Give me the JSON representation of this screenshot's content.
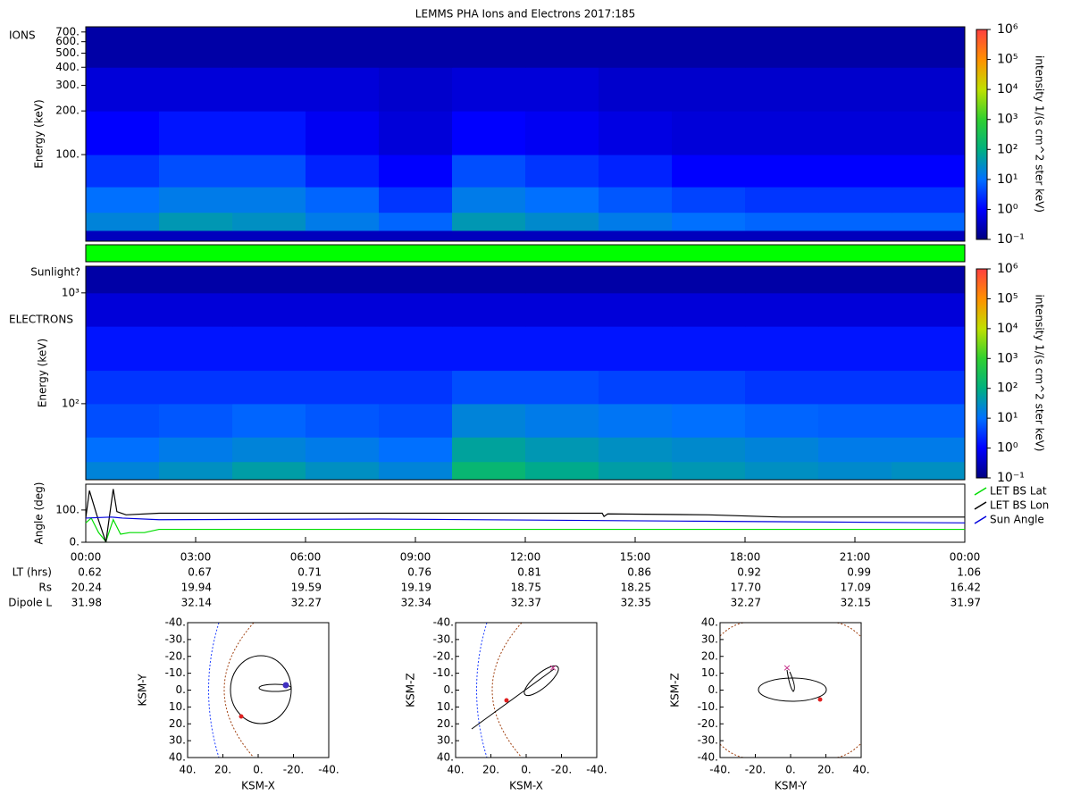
{
  "chart_data": [
    {
      "type": "heatmap",
      "title": "LEMMS PHA Ions and Electrons  2017:185",
      "annotation": "IONS",
      "ylabel": "Energy (keV)",
      "colorbar_label": "intensity 1/(s cm^2 ster keV)",
      "log_y": true,
      "xlim": [
        0,
        24
      ],
      "x_bins": [
        0,
        2,
        4,
        6,
        8,
        10,
        12,
        14,
        16,
        18,
        20,
        22,
        24
      ],
      "ylim": [
        25.3,
        760
      ],
      "y_bins": [
        25.3,
        30,
        40,
        60,
        100,
        200,
        400,
        760
      ],
      "yticks": [
        {
          "value": 100,
          "label": "100."
        },
        {
          "value": 200,
          "label": "200."
        },
        {
          "value": 300,
          "label": "300."
        },
        {
          "value": 400,
          "label": "400."
        },
        {
          "value": 500,
          "label": "500."
        },
        {
          "value": 600,
          "label": "600."
        },
        {
          "value": 700,
          "label": "700."
        }
      ],
      "values": [
        [
          0.3,
          0.3,
          0.3,
          0.3,
          0.3,
          0.3,
          0.3,
          0.3,
          0.3,
          0.3,
          0.3,
          0.3
        ],
        [
          20,
          40,
          30,
          15,
          8,
          40,
          25,
          15,
          10,
          8,
          8,
          8
        ],
        [
          10,
          15,
          15,
          8,
          3,
          15,
          10,
          6,
          4,
          3,
          3,
          3
        ],
        [
          3,
          5,
          5,
          2,
          1,
          5,
          3,
          2,
          1,
          1,
          1,
          1
        ],
        [
          1,
          1.5,
          1.5,
          0.8,
          0.5,
          1,
          0.8,
          0.6,
          0.5,
          0.5,
          0.5,
          0.5
        ],
        [
          0.5,
          0.5,
          0.5,
          0.5,
          0.4,
          0.5,
          0.5,
          0.4,
          0.4,
          0.4,
          0.4,
          0.4
        ],
        [
          0.2,
          0.2,
          0.2,
          0.2,
          0.2,
          0.2,
          0.2,
          0.2,
          0.2,
          0.2,
          0.2,
          0.2
        ]
      ],
      "zlim": [
        0.1,
        1000000
      ],
      "zticks": [
        {
          "value": 0.1,
          "label": "10⁻¹"
        },
        {
          "value": 1,
          "label": "10⁰"
        },
        {
          "value": 10,
          "label": "10¹"
        },
        {
          "value": 100,
          "label": "10²"
        },
        {
          "value": 1000,
          "label": "10³"
        },
        {
          "value": 10000,
          "label": "10⁴"
        },
        {
          "value": 100000,
          "label": "10⁵"
        },
        {
          "value": 1000000,
          "label": "10⁶"
        }
      ],
      "colormap": [
        "#000080",
        "#0000ff",
        "#0070ff",
        "#00b080",
        "#30d030",
        "#c0e000",
        "#ff9000",
        "#ff4040"
      ]
    },
    {
      "type": "status",
      "label": "Sunlight?",
      "color": "#00ff00"
    },
    {
      "type": "heatmap",
      "annotation": "ELECTRONS",
      "ylabel": "Energy (keV)",
      "colorbar_label": "intensity 1/(s cm^2 ster keV)",
      "log_y": true,
      "xlim": [
        0,
        24
      ],
      "x_bins": [
        0,
        2,
        4,
        6,
        8,
        10,
        12,
        14,
        16,
        18,
        20,
        22,
        24
      ],
      "ylim": [
        20.6,
        1740
      ],
      "y_bins": [
        20.6,
        30,
        50,
        100,
        200,
        500,
        1000,
        1740
      ],
      "yticks": [
        {
          "value": 100,
          "label": "10²"
        },
        {
          "value": 1000,
          "label": "10³"
        }
      ],
      "values": [
        [
          20,
          30,
          50,
          30,
          20,
          150,
          80,
          50,
          40,
          30,
          25,
          30
        ],
        [
          10,
          15,
          20,
          15,
          10,
          60,
          40,
          30,
          25,
          20,
          15,
          15
        ],
        [
          5,
          6,
          8,
          6,
          5,
          20,
          15,
          12,
          10,
          8,
          7,
          7
        ],
        [
          3,
          3,
          3,
          3,
          3,
          5,
          5,
          4,
          4,
          3,
          3,
          3
        ],
        [
          1.5,
          1.5,
          1.5,
          1.5,
          1.5,
          1.5,
          1.5,
          1.5,
          1.5,
          1.5,
          1.5,
          1.5
        ],
        [
          0.5,
          0.5,
          0.5,
          0.5,
          0.5,
          0.5,
          0.5,
          0.5,
          0.5,
          0.5,
          0.5,
          0.5
        ],
        [
          0.2,
          0.2,
          0.2,
          0.2,
          0.2,
          0.2,
          0.2,
          0.2,
          0.2,
          0.2,
          0.2,
          0.2
        ]
      ],
      "zlim": [
        0.1,
        1000000
      ],
      "zticks": [
        {
          "value": 0.1,
          "label": "10⁻¹"
        },
        {
          "value": 1,
          "label": "10⁰"
        },
        {
          "value": 10,
          "label": "10¹"
        },
        {
          "value": 100,
          "label": "10²"
        },
        {
          "value": 1000,
          "label": "10³"
        },
        {
          "value": 10000,
          "label": "10⁴"
        },
        {
          "value": 100000,
          "label": "10⁵"
        },
        {
          "value": 1000000,
          "label": "10⁶"
        }
      ],
      "colormap": [
        "#000080",
        "#0000ff",
        "#0070ff",
        "#00b080",
        "#30d030",
        "#c0e000",
        "#ff9000",
        "#ff4040"
      ]
    },
    {
      "type": "line",
      "ylabel": "Angle (deg)",
      "xlim": [
        0,
        24
      ],
      "ylim": [
        0,
        180
      ],
      "yticks": [
        {
          "value": 0,
          "label": "0."
        },
        {
          "value": 100,
          "label": "100."
        }
      ],
      "xticks": [
        {
          "value": 0,
          "label": "00:00"
        },
        {
          "value": 3,
          "label": "03:00"
        },
        {
          "value": 6,
          "label": "06:00"
        },
        {
          "value": 9,
          "label": "09:00"
        },
        {
          "value": 12,
          "label": "12:00"
        },
        {
          "value": 15,
          "label": "15:00"
        },
        {
          "value": 18,
          "label": "18:00"
        },
        {
          "value": 21,
          "label": "21:00"
        },
        {
          "value": 24,
          "label": "00:00"
        }
      ],
      "legend": "outside-right",
      "series": [
        {
          "name": "LET BS Lat",
          "color": "#00dd00",
          "x": [
            0,
            0.15,
            0.35,
            0.55,
            0.75,
            0.95,
            1.2,
            1.6,
            2,
            24
          ],
          "values": [
            60,
            75,
            30,
            2,
            70,
            25,
            30,
            30,
            40,
            40
          ]
        },
        {
          "name": "LET BS Lon",
          "color": "#000000",
          "x": [
            0,
            0.1,
            0.3,
            0.55,
            0.75,
            0.85,
            1.1,
            2,
            14.1,
            14.15,
            14.25,
            17,
            19,
            24
          ],
          "values": [
            75,
            160,
            85,
            0,
            165,
            95,
            85,
            90,
            90,
            80,
            88,
            85,
            78,
            78
          ]
        },
        {
          "name": "Sun Angle",
          "color": "#0000dd",
          "x": [
            0,
            0.7,
            1,
            2,
            8,
            17,
            24
          ],
          "values": [
            75,
            78,
            75,
            70,
            72,
            65,
            60
          ]
        }
      ]
    }
  ],
  "ephemeris": {
    "rows": [
      {
        "label": "LT (hrs)",
        "values": [
          "0.62",
          "0.67",
          "0.71",
          "0.76",
          "0.81",
          "0.86",
          "0.92",
          "0.99",
          "1.06"
        ]
      },
      {
        "label": "Rs",
        "values": [
          "20.24",
          "19.94",
          "19.59",
          "19.19",
          "18.75",
          "18.25",
          "17.70",
          "17.09",
          "16.42"
        ]
      },
      {
        "label": "Dipole L",
        "values": [
          "31.98",
          "32.14",
          "32.27",
          "32.34",
          "32.37",
          "32.35",
          "32.27",
          "32.15",
          "31.97"
        ]
      }
    ]
  },
  "orbit_plots": [
    {
      "xlabel": "KSM-X",
      "ylabel": "KSM-Y",
      "xlim": [
        40,
        -40
      ],
      "ylim": [
        40,
        -40
      ],
      "xticks": [
        {
          "value": 40,
          "label": "40."
        },
        {
          "value": 20,
          "label": "20."
        },
        {
          "value": 0,
          "label": "0."
        },
        {
          "value": -20,
          "label": "-20."
        },
        {
          "value": -40,
          "label": "-40."
        }
      ],
      "yticks": [
        {
          "value": -40,
          "label": "-40."
        },
        {
          "value": -30,
          "label": "-30."
        },
        {
          "value": -20,
          "label": "-20."
        },
        {
          "value": -10,
          "label": "-10."
        },
        {
          "value": 0,
          "label": "0."
        },
        {
          "value": 10,
          "label": "10."
        },
        {
          "value": 20,
          "label": "20."
        },
        {
          "value": 30,
          "label": "30."
        },
        {
          "value": 40,
          "label": "40."
        }
      ]
    },
    {
      "xlabel": "KSM-X",
      "ylabel": "KSM-Z",
      "xlim": [
        40,
        -40
      ],
      "ylim": [
        40,
        -40
      ],
      "xticks": [
        {
          "value": 40,
          "label": "40."
        },
        {
          "value": 20,
          "label": "20."
        },
        {
          "value": 0,
          "label": "0."
        },
        {
          "value": -20,
          "label": "-20."
        },
        {
          "value": -40,
          "label": "-40."
        }
      ],
      "yticks": [
        {
          "value": -40,
          "label": "-40."
        },
        {
          "value": -30,
          "label": "-30."
        },
        {
          "value": -20,
          "label": "-20."
        },
        {
          "value": -10,
          "label": "-10."
        },
        {
          "value": 0,
          "label": "0."
        },
        {
          "value": 10,
          "label": "10."
        },
        {
          "value": 20,
          "label": "20."
        },
        {
          "value": 30,
          "label": "30."
        },
        {
          "value": 40,
          "label": "40."
        }
      ]
    },
    {
      "xlabel": "KSM-Y",
      "ylabel": "KSM-Z",
      "xlim": [
        -40,
        40
      ],
      "ylim": [
        -40,
        40
      ],
      "xticks": [
        {
          "value": -40,
          "label": "-40."
        },
        {
          "value": -20,
          "label": "-20."
        },
        {
          "value": 0,
          "label": "0."
        },
        {
          "value": 20,
          "label": "20."
        },
        {
          "value": 40,
          "label": "40."
        }
      ],
      "yticks": [
        {
          "value": 40,
          "label": "40."
        },
        {
          "value": 30,
          "label": "30."
        },
        {
          "value": 20,
          "label": "20."
        },
        {
          "value": 10,
          "label": "10."
        },
        {
          "value": 0,
          "label": "0."
        },
        {
          "value": -10,
          "label": "-10."
        },
        {
          "value": -20,
          "label": "-20."
        },
        {
          "value": -30,
          "label": "-30."
        },
        {
          "value": -40,
          "label": "-40."
        }
      ]
    }
  ]
}
